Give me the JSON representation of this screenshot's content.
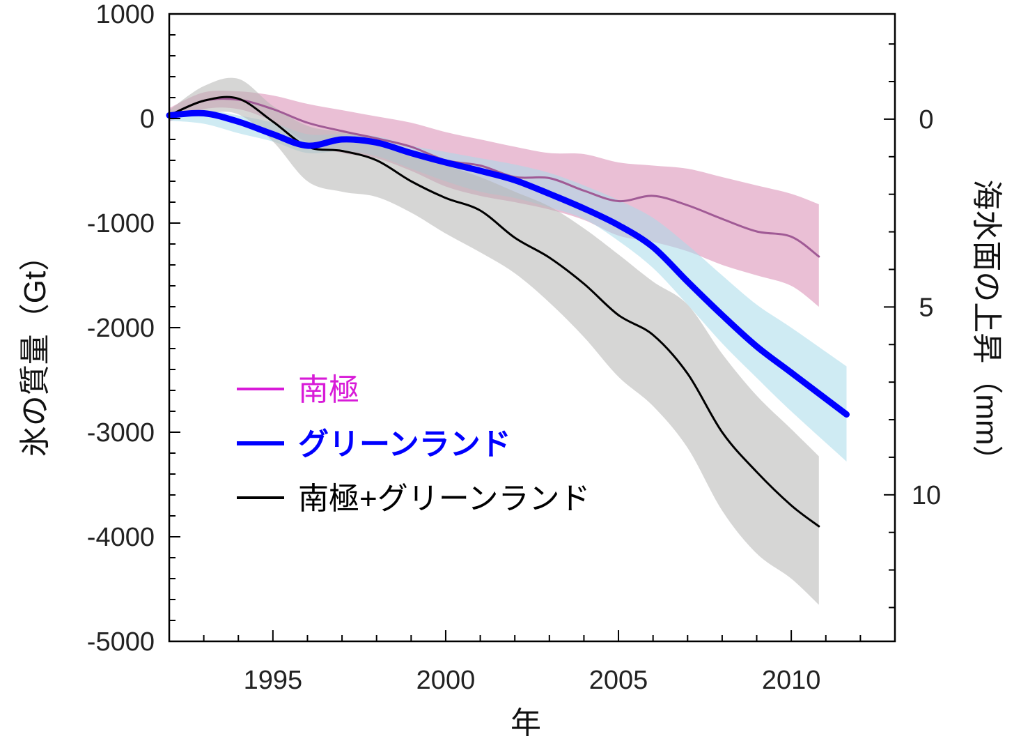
{
  "chart_data": {
    "type": "line",
    "xlabel": "年",
    "ylabel": "氷の質量（Gt）",
    "ylabel_right": "海水面の上昇（mm）",
    "xlim": [
      1992,
      2013
    ],
    "ylim": [
      -5000,
      1000
    ],
    "ylim_right": [
      13.9,
      -2.8
    ],
    "x_ticks": [
      1995,
      2000,
      2005,
      2010
    ],
    "y_ticks": [
      1000,
      0,
      -1000,
      -2000,
      -3000,
      -4000,
      -5000
    ],
    "y_ticks_right": [
      0,
      5,
      10
    ],
    "x_tick_labels": [
      "1995",
      "2000",
      "2005",
      "2010"
    ],
    "y_tick_labels": [
      "1000",
      "0",
      "-1000",
      "-2000",
      "-3000",
      "-4000",
      "-5000"
    ],
    "y_tick_labels_right": [
      "0",
      "5",
      "10"
    ],
    "grid": false,
    "legend_position": "lower-left inside plot",
    "series": [
      {
        "name": "南極",
        "color": "#d81bd8",
        "line_color": "#a05a95",
        "band_color": "#d98bb2",
        "line_width": 3,
        "x": [
          1992,
          1993,
          1994,
          1995,
          1996,
          1997,
          1998,
          1999,
          2000,
          2001,
          2002,
          2003,
          2004,
          2005,
          2006,
          2007,
          2008,
          2009,
          2010,
          2010.8
        ],
        "values": [
          30,
          170,
          180,
          90,
          -40,
          -120,
          -190,
          -270,
          -400,
          -450,
          -560,
          -570,
          -690,
          -790,
          -740,
          -830,
          -960,
          -1080,
          -1130,
          -1320
        ],
        "upper": [
          100,
          250,
          260,
          220,
          140,
          80,
          20,
          -40,
          -130,
          -200,
          -270,
          -330,
          -340,
          -420,
          -450,
          -480,
          -560,
          -640,
          -720,
          -820
        ],
        "lower": [
          -30,
          90,
          90,
          -30,
          -230,
          -330,
          -380,
          -500,
          -650,
          -740,
          -800,
          -870,
          -970,
          -1120,
          -1180,
          -1270,
          -1400,
          -1500,
          -1600,
          -1800
        ]
      },
      {
        "name": "グリーンランド",
        "color": "#0000ff",
        "line_color": "#0000ff",
        "band_color": "#a7dbe9",
        "line_width": 9,
        "x": [
          1992,
          1993,
          1994,
          1995,
          1996,
          1997,
          1998,
          1999,
          2000,
          2001,
          2002,
          2003,
          2004,
          2005,
          2006,
          2007,
          2008,
          2009,
          2010,
          2011.6
        ],
        "values": [
          30,
          50,
          -30,
          -150,
          -260,
          -200,
          -230,
          -330,
          -420,
          -500,
          -590,
          -720,
          -860,
          -1020,
          -1230,
          -1560,
          -1880,
          -2180,
          -2430,
          -2830
        ],
        "upper": [
          40,
          80,
          30,
          -40,
          -150,
          -150,
          -170,
          -260,
          -320,
          -380,
          -440,
          -520,
          -640,
          -780,
          -950,
          -1210,
          -1500,
          -1780,
          -2000,
          -2370
        ],
        "lower": [
          -20,
          -50,
          -140,
          -220,
          -330,
          -310,
          -360,
          -480,
          -600,
          -700,
          -760,
          -850,
          -960,
          -1170,
          -1430,
          -1780,
          -2150,
          -2480,
          -2800,
          -3280
        ]
      },
      {
        "name": "南極+グリーンランド",
        "color": "#000000",
        "line_color": "#000000",
        "band_color": "#b5b4b2",
        "line_width": 3,
        "x": [
          1992,
          1993,
          1994,
          1995,
          1996,
          1997,
          1998,
          1999,
          2000,
          2001,
          2002,
          2003,
          2004,
          2005,
          2006,
          2007,
          2008,
          2009,
          2010,
          2010.8
        ],
        "values": [
          30,
          170,
          190,
          -30,
          -270,
          -310,
          -400,
          -600,
          -760,
          -880,
          -1140,
          -1330,
          -1580,
          -1880,
          -2070,
          -2440,
          -3000,
          -3380,
          -3700,
          -3900
        ],
        "upper": [
          80,
          310,
          380,
          120,
          -70,
          -130,
          -200,
          -360,
          -450,
          -560,
          -700,
          -840,
          -1050,
          -1300,
          -1560,
          -1780,
          -2250,
          -2650,
          -2970,
          -3230
        ],
        "lower": [
          0,
          50,
          40,
          -220,
          -600,
          -700,
          -750,
          -900,
          -1100,
          -1280,
          -1480,
          -1760,
          -2090,
          -2470,
          -2750,
          -3150,
          -3750,
          -4160,
          -4400,
          -4650
        ]
      }
    ]
  }
}
